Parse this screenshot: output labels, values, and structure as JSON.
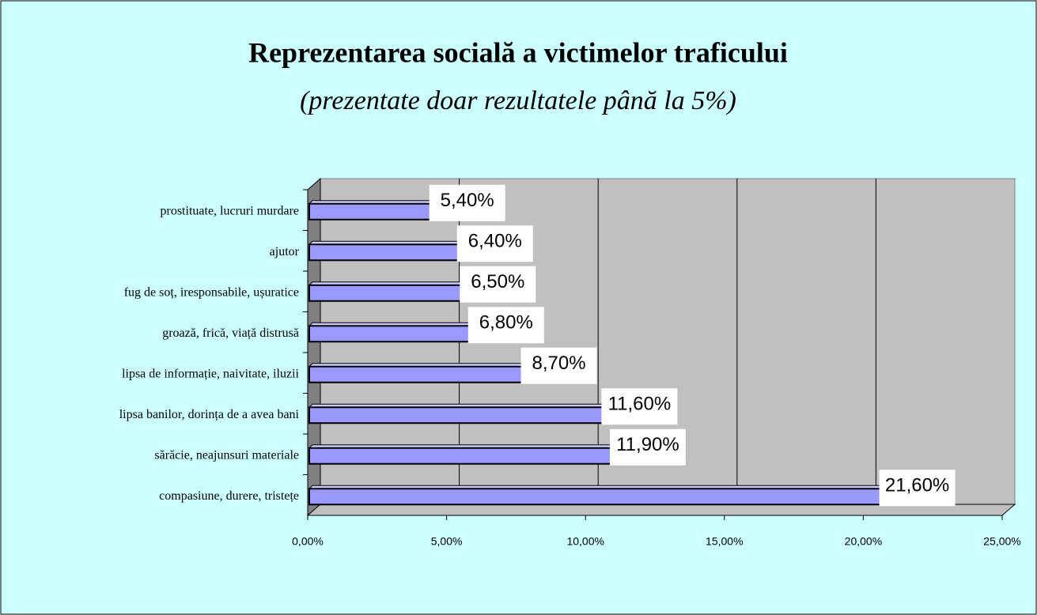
{
  "chart_data": {
    "type": "bar",
    "orientation": "horizontal",
    "title": "Reprezentarea socială a victimelor traficului",
    "subtitle": "(prezentate doar rezultatele până la 5%)",
    "categories": [
      "prostituate, lucruri murdare",
      "ajutor",
      "fug de soț, iresponsabile, ușuratice",
      "groază, frică, viață distrusă",
      "lipsa de informație, naivitate, iluzii",
      "lipsa banilor, dorința de a avea bani",
      "sărăcie, neajunsuri materiale",
      "compasiune, durere, tristețe"
    ],
    "values": [
      5.4,
      6.4,
      6.5,
      6.8,
      8.7,
      11.6,
      11.9,
      21.6
    ],
    "value_labels": [
      "5,40%",
      "6,40%",
      "6,50%",
      "6,80%",
      "8,70%",
      "11,60%",
      "11,90%",
      "21,60%"
    ],
    "color": "#9999ff",
    "xlim": [
      0,
      25
    ],
    "xticks": [
      {
        "value": 0,
        "label": "0,00%"
      },
      {
        "value": 5,
        "label": "5,00%"
      },
      {
        "value": 10,
        "label": "10,00%"
      },
      {
        "value": 15,
        "label": "15,00%"
      },
      {
        "value": 20,
        "label": "20,00%"
      },
      {
        "value": 25,
        "label": "25,00%"
      }
    ],
    "grid": true
  }
}
